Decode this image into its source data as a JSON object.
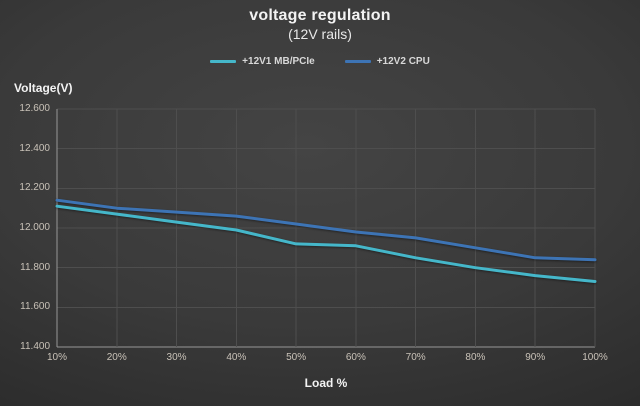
{
  "chart_data": {
    "type": "line",
    "title": "voltage regulation",
    "subtitle": "(12V rails)",
    "x_axis": {
      "title": "Load %",
      "categories": [
        "10%",
        "20%",
        "30%",
        "40%",
        "50%",
        "60%",
        "70%",
        "80%",
        "90%",
        "100%"
      ]
    },
    "y_axis": {
      "title": "Voltage(V)",
      "min": 11.4,
      "max": 12.6,
      "step": 0.2,
      "tick_labels": [
        "12.600",
        "12.400",
        "12.200",
        "12.000",
        "11.800",
        "11.600",
        "11.400"
      ]
    },
    "series": [
      {
        "name": "+12V1 MB/PCIe",
        "color": "#45b7ca",
        "values": [
          12.11,
          12.07,
          12.03,
          11.99,
          11.92,
          11.91,
          11.85,
          11.8,
          11.76,
          11.73
        ]
      },
      {
        "name": "+12V2 CPU",
        "color": "#3d74b5",
        "values": [
          12.14,
          12.1,
          12.08,
          12.06,
          12.02,
          11.98,
          11.95,
          11.9,
          11.85,
          11.84
        ]
      }
    ],
    "grid": true,
    "legend_position": "top"
  },
  "colors": {
    "gridline": "#4e4e4e",
    "axis_line": "#979797",
    "tick_text": "#c9c2b8",
    "series_12v1": "#45b7ca",
    "series_12v2": "#3d74b5"
  }
}
